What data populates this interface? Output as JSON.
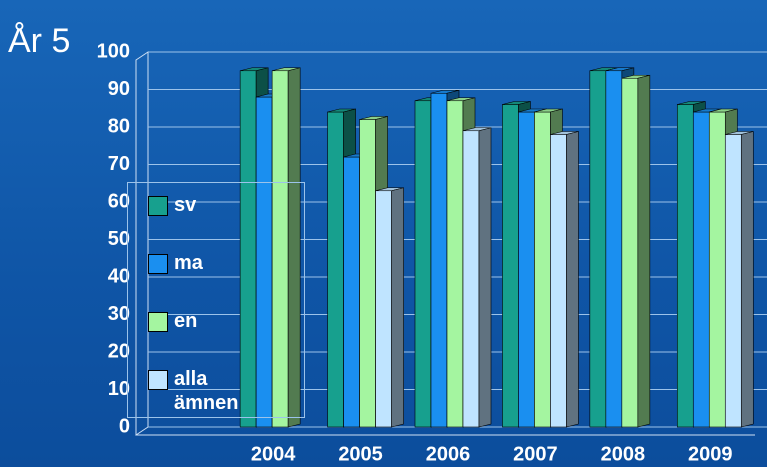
{
  "chart_data": {
    "type": "bar",
    "title": "År 5",
    "categories": [
      null,
      "2004",
      "2005",
      "2006",
      "2007",
      "2008",
      "2009"
    ],
    "series": [
      {
        "name": "sv",
        "color": "#17a08e",
        "values": [
          null,
          95,
          84,
          87,
          86,
          95,
          86
        ]
      },
      {
        "name": "ma",
        "color": "#1a8ff0",
        "values": [
          null,
          88,
          72,
          89,
          84,
          95,
          84
        ]
      },
      {
        "name": "en",
        "color": "#a4f5a0",
        "values": [
          null,
          95,
          82,
          87,
          84,
          93,
          84
        ]
      },
      {
        "name": "alla ämnen",
        "color": "#bfe4ff",
        "values": [
          null,
          null,
          63,
          79,
          78,
          null,
          78
        ]
      }
    ],
    "ylim": [
      0,
      100
    ],
    "yticks": [
      0,
      10,
      20,
      30,
      40,
      50,
      60,
      70,
      80,
      90,
      100
    ],
    "grid": true
  }
}
